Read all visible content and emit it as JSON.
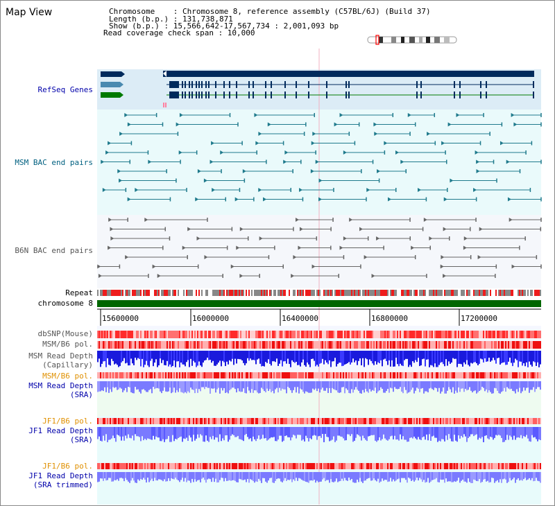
{
  "header": {
    "title": "Map View",
    "lines": [
      "Chromosome    : Chromosome 8, reference assembly (C57BL/6J) (Build 37)",
      "Length (b.p.) : 131,738,871",
      "Show (b.p.) : 15,566,642-17,567,734 : 2,001,093 bp",
      "Read coverage check span : 10,000"
    ]
  },
  "tracks": {
    "refseq": "RefSeq Genes",
    "msm_bac": "MSM BAC end pairs",
    "b6n_bac": "B6N BAC end pairs",
    "repeat": "Repeat",
    "chromosome": "chromosome 8",
    "dbsnp": "dbSNP(Mouse)",
    "msm_b6_pol_1": "MSM/B6 pol.",
    "msm_depth_cap_1": "MSM Read Depth",
    "msm_depth_cap_2": "(Capillary)",
    "msm_b6_pol_2": "MSM/B6 pol.",
    "msm_depth_sra_1": "MSM Read Depth",
    "msm_depth_sra_2": "(SRA)",
    "jf1_b6_pol_1": "JF1/B6 pol.",
    "jf1_depth_sra_1": "JF1 Read Depth",
    "jf1_depth_sra_2": "(SRA)",
    "jf1_b6_pol_2": "JF1/B6 pol.",
    "jf1_depth_trim_1": "JF1 Read Depth",
    "jf1_depth_trim_2": "(SRA trimmed)"
  },
  "axis": {
    "ticks": [
      "15600000",
      "16000000",
      "16400000",
      "16800000",
      "17200000"
    ]
  },
  "colors": {
    "gene_dark": "#002a5c",
    "gene_mid": "#4a8ab0",
    "gene_green": "#007a00",
    "bac_msm": "#1f7a8c",
    "bac_b6n": "#666666",
    "chrom": "#006600",
    "snp": "#ff2020",
    "depth_cap": "#1a1adc",
    "depth_sra": "#7a7aff",
    "label_blue": "#0000aa",
    "label_teal": "#006080",
    "label_gray": "#555555",
    "label_orange": "#e09000"
  }
}
